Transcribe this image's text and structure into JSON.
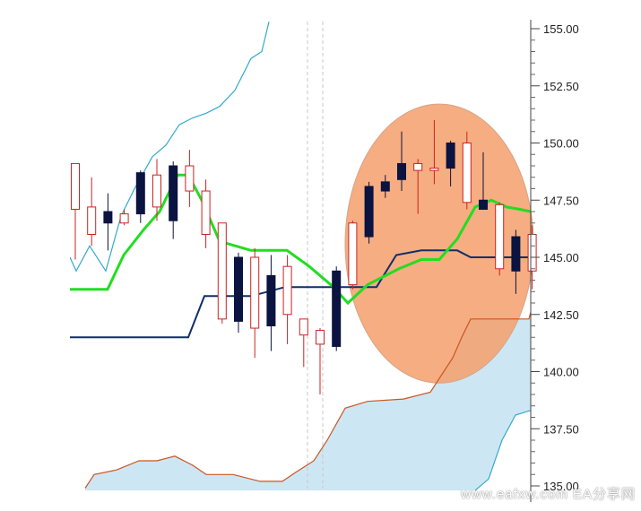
{
  "chart_data": {
    "type": "candlestick",
    "title": "",
    "xlabel": "",
    "ylabel": "",
    "ylim": [
      134.8,
      156.2
    ],
    "y_ticks": [
      "135.00",
      "137.50",
      "140.00",
      "142.50",
      "145.00",
      "147.50",
      "150.00",
      "152.50",
      "155.00"
    ],
    "grid": false,
    "colors": {
      "bull": "#cc2222",
      "bear": "#0b1340",
      "tenkan": "#22dd22",
      "kijun": "#0e2f6a",
      "span_a": "#cc5522",
      "span_b": "#33aacc",
      "cloud_fill": "#cde6f3",
      "highlight": "#f5a26f"
    },
    "candles": [
      {
        "o": 147.1,
        "h": 149.1,
        "l": 144.9,
        "c": 149.1
      },
      {
        "o": 146.0,
        "h": 148.5,
        "l": 145.5,
        "c": 147.2
      },
      {
        "o": 147.0,
        "h": 147.8,
        "l": 145.3,
        "c": 146.5
      },
      {
        "o": 146.5,
        "h": 147.1,
        "l": 146.4,
        "c": 146.9
      },
      {
        "o": 148.7,
        "h": 148.8,
        "l": 146.5,
        "c": 146.9
      },
      {
        "o": 147.2,
        "h": 149.3,
        "l": 146.6,
        "c": 148.6
      },
      {
        "o": 149.0,
        "h": 149.2,
        "l": 145.8,
        "c": 146.6
      },
      {
        "o": 147.9,
        "h": 149.7,
        "l": 147.2,
        "c": 149.0
      },
      {
        "o": 146.0,
        "h": 148.4,
        "l": 145.4,
        "c": 147.9
      },
      {
        "o": 142.3,
        "h": 146.5,
        "l": 142.1,
        "c": 146.5
      },
      {
        "o": 145.0,
        "h": 145.2,
        "l": 141.7,
        "c": 142.2
      },
      {
        "o": 141.9,
        "h": 145.4,
        "l": 140.6,
        "c": 145.0
      },
      {
        "o": 144.2,
        "h": 145.1,
        "l": 140.9,
        "c": 142.0
      },
      {
        "o": 142.5,
        "h": 145.1,
        "l": 141.2,
        "c": 144.6
      },
      {
        "o": 141.6,
        "h": 142.2,
        "l": 140.2,
        "c": 142.3
      },
      {
        "o": 141.2,
        "h": 141.9,
        "l": 139.0,
        "c": 141.8
      },
      {
        "o": 144.4,
        "h": 144.6,
        "l": 140.9,
        "c": 141.1
      },
      {
        "o": 143.8,
        "h": 146.6,
        "l": 143.6,
        "c": 146.5
      },
      {
        "o": 148.1,
        "h": 148.3,
        "l": 145.6,
        "c": 145.9
      },
      {
        "o": 148.3,
        "h": 148.6,
        "l": 147.6,
        "c": 147.9
      },
      {
        "o": 149.1,
        "h": 150.5,
        "l": 147.9,
        "c": 148.4
      },
      {
        "o": 148.8,
        "h": 149.3,
        "l": 146.9,
        "c": 149.1
      },
      {
        "o": 148.8,
        "h": 151.0,
        "l": 148.2,
        "c": 148.9
      },
      {
        "o": 150.0,
        "h": 150.1,
        "l": 148.1,
        "c": 148.9
      },
      {
        "o": 147.4,
        "h": 150.5,
        "l": 147.1,
        "c": 150.0
      },
      {
        "o": 147.5,
        "h": 149.6,
        "l": 147.2,
        "c": 147.1
      },
      {
        "o": 144.5,
        "h": 147.4,
        "l": 144.2,
        "c": 147.3
      },
      {
        "o": 145.9,
        "h": 146.2,
        "l": 143.4,
        "c": 144.4
      },
      {
        "o": 144.4,
        "h": 146.4,
        "l": 143.6,
        "c": 146.0
      }
    ],
    "series": [
      {
        "x": [
          78,
          120,
          138,
          160,
          178,
          198,
          210,
          225,
          245,
          280,
          320,
          345,
          372,
          388,
          410,
          445,
          470,
          490,
          510,
          530,
          548,
          565,
          580,
          592
        ],
        "values": [
          143.6,
          143.6,
          145.1,
          146.2,
          147.0,
          148.6,
          148.6,
          147.5,
          145.7,
          145.3,
          145.3,
          144.6,
          143.7,
          143.0,
          143.8,
          144.5,
          144.9,
          144.9,
          145.8,
          147.2,
          147.5,
          147.2,
          147.1,
          147.0
        ]
      },
      {
        "x": [
          78,
          210,
          228,
          280,
          318,
          360,
          392,
          420,
          442,
          470,
          510,
          525,
          545,
          592
        ],
        "values": [
          141.5,
          141.5,
          143.3,
          143.3,
          143.7,
          143.7,
          143.7,
          143.7,
          145.1,
          145.3,
          145.3,
          145.0,
          145.0,
          145.0
        ]
      },
      {
        "x": [
          95,
          105,
          130,
          155,
          175,
          195,
          215,
          230,
          260,
          290,
          315,
          330,
          350,
          365,
          385,
          410,
          450,
          480,
          505,
          515,
          525,
          590,
          592
        ],
        "values": [
          134.9,
          135.5,
          135.7,
          136.1,
          136.1,
          136.3,
          135.9,
          135.5,
          135.5,
          135.2,
          135.2,
          135.6,
          136.1,
          137.0,
          138.4,
          138.7,
          138.8,
          139.1,
          140.6,
          141.5,
          142.3,
          142.3,
          142.6
        ]
      },
      {
        "x": [
          78,
          85,
          100,
          118,
          135,
          150,
          170,
          185,
          200,
          215,
          230,
          245,
          262,
          280,
          292,
          300
        ],
        "values": [
          145.0,
          144.4,
          145.5,
          144.4,
          146.8,
          148.0,
          149.4,
          149.9,
          150.8,
          151.1,
          151.3,
          151.6,
          152.3,
          153.7,
          154.0,
          155.3
        ]
      },
      {
        "x": [
          530,
          545,
          560,
          575,
          592
        ],
        "values": [
          134.8,
          135.3,
          137.0,
          138.1,
          138.3
        ]
      }
    ],
    "annotations": {
      "highlight_ellipse": {
        "x_range": [
          385,
          595
        ],
        "y_range": [
          139.5,
          151.7
        ]
      },
      "dashed_vlines_x": [
        343,
        360
      ]
    }
  },
  "watermark": "www.eafxw.com EA分享网"
}
